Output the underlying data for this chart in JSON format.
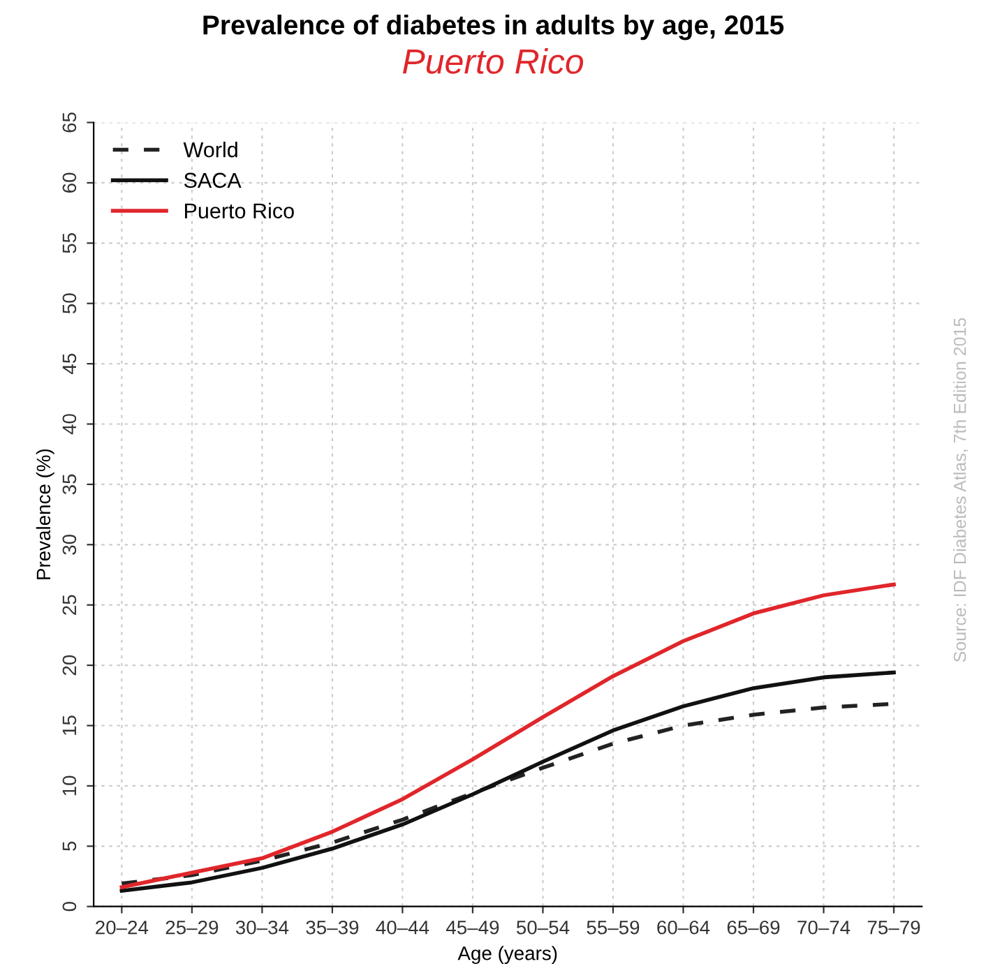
{
  "chart_data": {
    "type": "line",
    "title": "Prevalence of diabetes in adults by age, 2015",
    "subtitle": "Puerto Rico",
    "xlabel": "Age (years)",
    "ylabel": "Prevalence (%)",
    "categories": [
      "20–24",
      "25–29",
      "30–34",
      "35–39",
      "40–44",
      "45–49",
      "50–54",
      "55–59",
      "60–64",
      "65–69",
      "70–74",
      "75–79"
    ],
    "series": [
      {
        "name": "World",
        "color": "#222222",
        "line_style": "dashed",
        "values": [
          1.9,
          2.6,
          3.8,
          5.3,
          7.2,
          9.4,
          11.5,
          13.5,
          15.0,
          15.9,
          16.5,
          16.8
        ]
      },
      {
        "name": "SACA",
        "color": "#111111",
        "line_style": "solid",
        "values": [
          1.3,
          2.0,
          3.2,
          4.8,
          6.8,
          9.3,
          12.0,
          14.6,
          16.6,
          18.1,
          19.0,
          19.4
        ]
      },
      {
        "name": "Puerto Rico",
        "color": "#e0262b",
        "line_style": "solid",
        "values": [
          1.6,
          2.8,
          4.0,
          6.2,
          8.9,
          12.2,
          15.7,
          19.1,
          22.0,
          24.3,
          25.8,
          26.7
        ]
      }
    ],
    "ylim": [
      0,
      65
    ],
    "yticks": [
      0,
      5,
      10,
      15,
      20,
      25,
      30,
      35,
      40,
      45,
      50,
      55,
      60,
      65
    ],
    "grid": true,
    "legend": "top left",
    "annotations": [
      "Source: IDF Diabetes Atlas, 7th Edition 2015"
    ]
  }
}
